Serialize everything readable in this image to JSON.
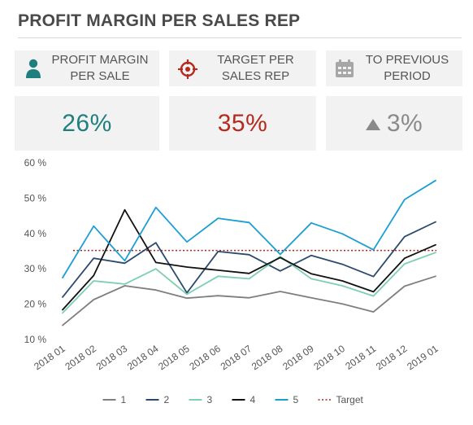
{
  "title": "PROFIT MARGIN PER SALES REP",
  "kpis": [
    {
      "label_line1": "PROFIT MARGIN",
      "label_line2": "PER SALE",
      "value": "26%",
      "icon": "person-icon",
      "color": "#1f7f7f"
    },
    {
      "label_line1": "TARGET PER",
      "label_line2": "SALES REP",
      "value": "35%",
      "icon": "target-icon",
      "color": "#b52a1e"
    },
    {
      "label_line1": "TO PREVIOUS",
      "label_line2": "PERIOD",
      "value": "3%",
      "icon": "calendar-icon",
      "trend": "up",
      "color": "#8a8a8a"
    }
  ],
  "chart_data": {
    "type": "line",
    "categories": [
      "2018 01",
      "2018 02",
      "2018 03",
      "2018 04",
      "2018 05",
      "2018 06",
      "2018 07",
      "2018 08",
      "2018 09",
      "2018 10",
      "2018 11",
      "2018 12",
      "2019 01"
    ],
    "y_tick_labels": [
      "10 %",
      "20 %",
      "30 %",
      "40 %",
      "50 %",
      "60 %"
    ],
    "ylim": [
      10,
      60
    ],
    "y_ticks": [
      10,
      20,
      30,
      40,
      50,
      60
    ],
    "grid": false,
    "legend_position": "bottom-center",
    "series": [
      {
        "name": "1",
        "color": "#7f7f7f",
        "values": [
          14,
          21.3,
          25.2,
          24,
          21.7,
          22.4,
          21.8,
          23.6,
          21.8,
          20.1,
          17.8,
          25.1,
          27.9
        ]
      },
      {
        "name": "2",
        "color": "#2c4a6e",
        "values": [
          22,
          33,
          31.6,
          37.4,
          23.2,
          34.9,
          34,
          29.4,
          33.8,
          31.3,
          27.8,
          39.1,
          43.3
        ]
      },
      {
        "name": "3",
        "color": "#7ccfb0",
        "values": [
          17.5,
          26.6,
          25.7,
          30,
          22.8,
          27.9,
          27.2,
          33.5,
          27.2,
          25.2,
          22.3,
          31.4,
          34.6
        ]
      },
      {
        "name": "4",
        "color": "#111111",
        "values": [
          18.4,
          28.1,
          46.7,
          31.8,
          30.5,
          29.6,
          28.7,
          33.2,
          28.6,
          26.6,
          23.5,
          33,
          36.8
        ]
      },
      {
        "name": "5",
        "color": "#1a9fd4",
        "values": [
          27.5,
          42.1,
          32.3,
          47.4,
          37.6,
          44.3,
          43.1,
          34.1,
          43,
          39.9,
          35.4,
          49.6,
          55
        ]
      }
    ],
    "target": {
      "name": "Target",
      "value": 35.2,
      "color": "#a3241b"
    }
  }
}
